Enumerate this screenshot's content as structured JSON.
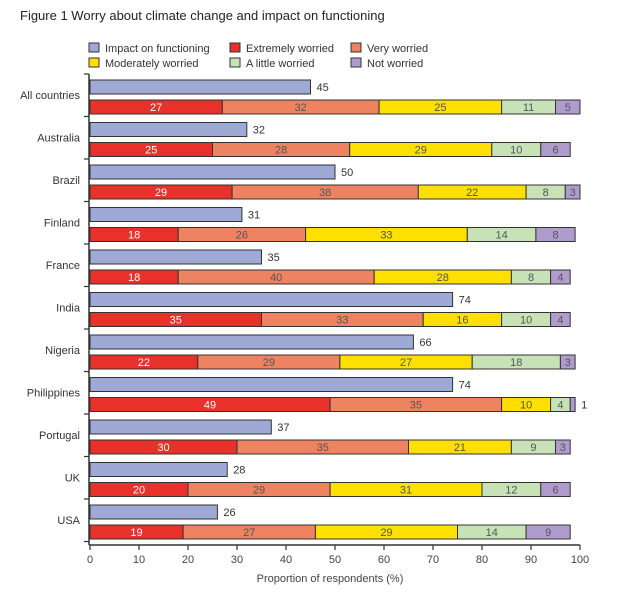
{
  "chart_data": {
    "type": "bar",
    "title": "Figure 1 Worry about climate change and impact on functioning",
    "xlabel": "Proportion of respondents (%)",
    "ylabel": "",
    "xlim": [
      0,
      100
    ],
    "xticks": [
      0,
      10,
      20,
      30,
      40,
      50,
      60,
      70,
      80,
      90,
      100
    ],
    "legend_placement": "top",
    "categories": [
      "All countries",
      "Australia",
      "Brazil",
      "Finland",
      "France",
      "India",
      "Nigeria",
      "Philippines",
      "Portugal",
      "UK",
      "USA"
    ],
    "impact_series": {
      "name": "Impact on functioning",
      "color": "#9ea9d6",
      "values": [
        45,
        32,
        50,
        31,
        35,
        74,
        66,
        74,
        37,
        28,
        26
      ]
    },
    "stacked_series": [
      {
        "name": "Extremely worried",
        "color": "#e8312a",
        "label_color": "#ffffff",
        "values": [
          27,
          25,
          29,
          18,
          18,
          35,
          22,
          49,
          30,
          20,
          19
        ]
      },
      {
        "name": "Very worried",
        "color": "#ee8361",
        "label_color": "#555555",
        "values": [
          32,
          28,
          38,
          26,
          40,
          33,
          29,
          35,
          35,
          29,
          27
        ]
      },
      {
        "name": "Moderately worried",
        "color": "#fde000",
        "label_color": "#555555",
        "values": [
          25,
          29,
          22,
          33,
          28,
          16,
          27,
          10,
          21,
          31,
          29
        ]
      },
      {
        "name": "A little worried",
        "color": "#c8e2b8",
        "label_color": "#555555",
        "values": [
          11,
          10,
          8,
          14,
          8,
          10,
          18,
          4,
          9,
          12,
          14
        ]
      },
      {
        "name": "Not worried",
        "color": "#b09ccc",
        "label_color": "#555555",
        "values": [
          5,
          6,
          3,
          8,
          4,
          4,
          3,
          1,
          3,
          6,
          9
        ]
      }
    ],
    "legend_order": [
      "Impact on functioning",
      "Extremely worried",
      "Very worried",
      "Moderately worried",
      "A little worried",
      "Not worried"
    ]
  }
}
